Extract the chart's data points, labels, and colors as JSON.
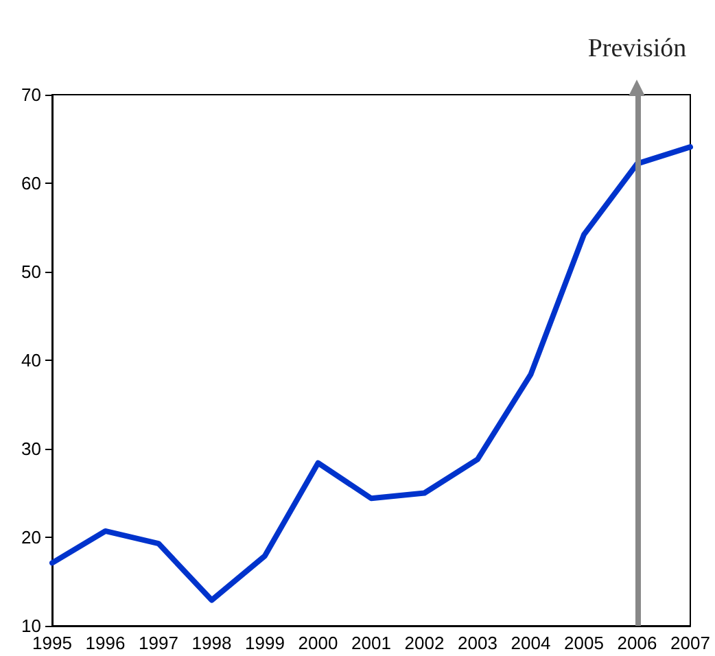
{
  "chart_data": {
    "type": "line",
    "categories": [
      "1995",
      "1996",
      "1997",
      "1998",
      "1999",
      "2000",
      "2001",
      "2002",
      "2003",
      "2004",
      "2005",
      "2006",
      "2007"
    ],
    "series": [
      {
        "color": "#0033cc",
        "values": [
          17.1,
          20.7,
          19.3,
          12.9,
          17.9,
          28.4,
          24.4,
          25.0,
          28.8,
          38.4,
          54.2,
          62.2,
          64.1
        ]
      }
    ],
    "ylim": [
      10,
      70
    ],
    "yticks": [
      10,
      20,
      30,
      40,
      50,
      60,
      70
    ],
    "ref_lines": [
      {
        "axis": "x",
        "value": "2006",
        "label": "Previsión",
        "color": "#888888"
      }
    ],
    "grid": false,
    "marker": "none",
    "line_style": "solid"
  }
}
